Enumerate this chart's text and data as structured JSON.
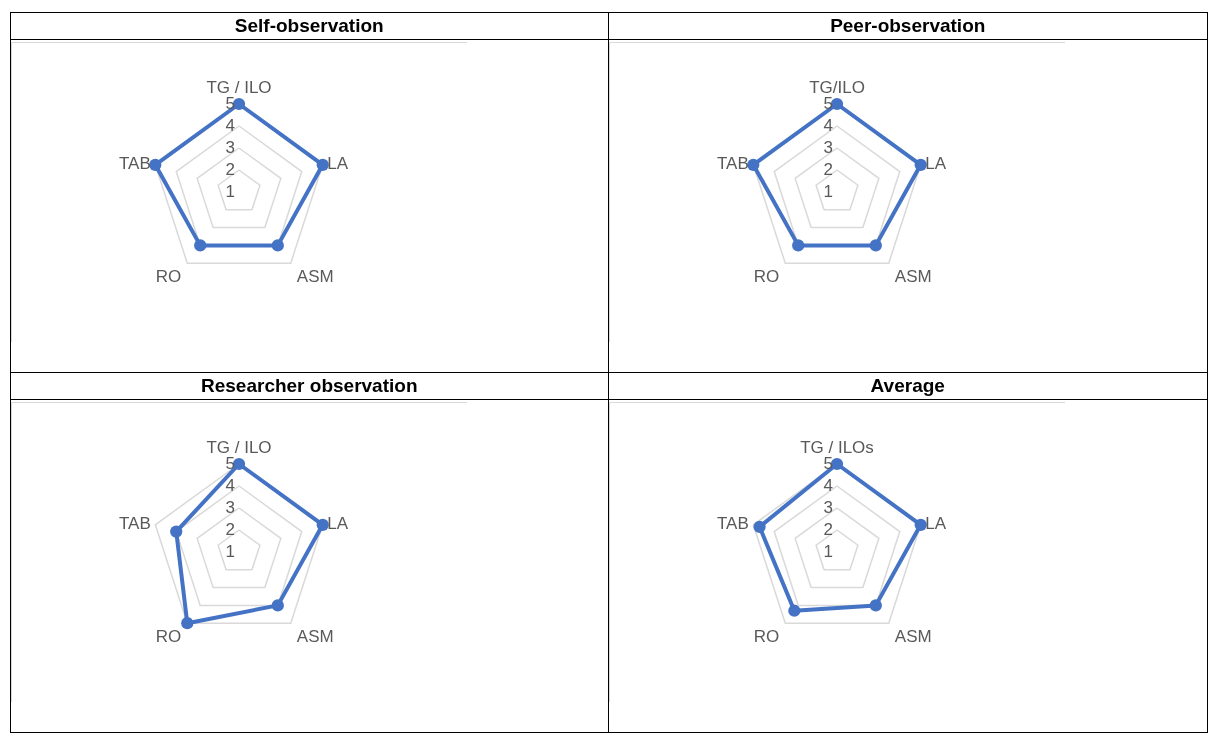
{
  "chart_data": [
    {
      "type": "radar",
      "title": "Self-observation",
      "categories": [
        "TG / ILO",
        "LA",
        "ASM",
        "RO",
        "TAB"
      ],
      "ylim": [
        1,
        5
      ],
      "yticks": [
        1,
        2,
        3,
        4,
        5
      ],
      "grid": true,
      "marker": "circle",
      "series": [
        {
          "color": "#4472c4",
          "values": [
            5,
            5,
            4,
            4,
            5
          ]
        }
      ]
    },
    {
      "type": "radar",
      "title": "Peer-observation",
      "categories": [
        "TG/ILO",
        "LA",
        "ASM",
        "RO",
        "TAB"
      ],
      "ylim": [
        1,
        5
      ],
      "yticks": [
        1,
        2,
        3,
        4,
        5
      ],
      "grid": true,
      "marker": "circle",
      "series": [
        {
          "color": "#4472c4",
          "values": [
            5,
            5,
            4,
            4,
            5
          ]
        }
      ]
    },
    {
      "type": "radar",
      "title": "Researcher observation",
      "categories": [
        "TG / ILO",
        "LA",
        "ASM",
        "RO",
        "TAB"
      ],
      "ylim": [
        1,
        5
      ],
      "yticks": [
        1,
        2,
        3,
        4,
        5
      ],
      "grid": true,
      "marker": "circle",
      "series": [
        {
          "color": "#4472c4",
          "values": [
            5,
            5,
            4,
            5,
            4
          ]
        }
      ]
    },
    {
      "type": "radar",
      "title": "Average",
      "categories": [
        "TG / ILOs",
        "LA",
        "ASM",
        "RO",
        "TAB"
      ],
      "ylim": [
        1,
        5
      ],
      "yticks": [
        1,
        2,
        3,
        4,
        5
      ],
      "grid": true,
      "marker": "circle",
      "series": [
        {
          "color": "#4472c4",
          "values": [
            5,
            5,
            4,
            4.3,
            4.7
          ]
        }
      ]
    }
  ]
}
